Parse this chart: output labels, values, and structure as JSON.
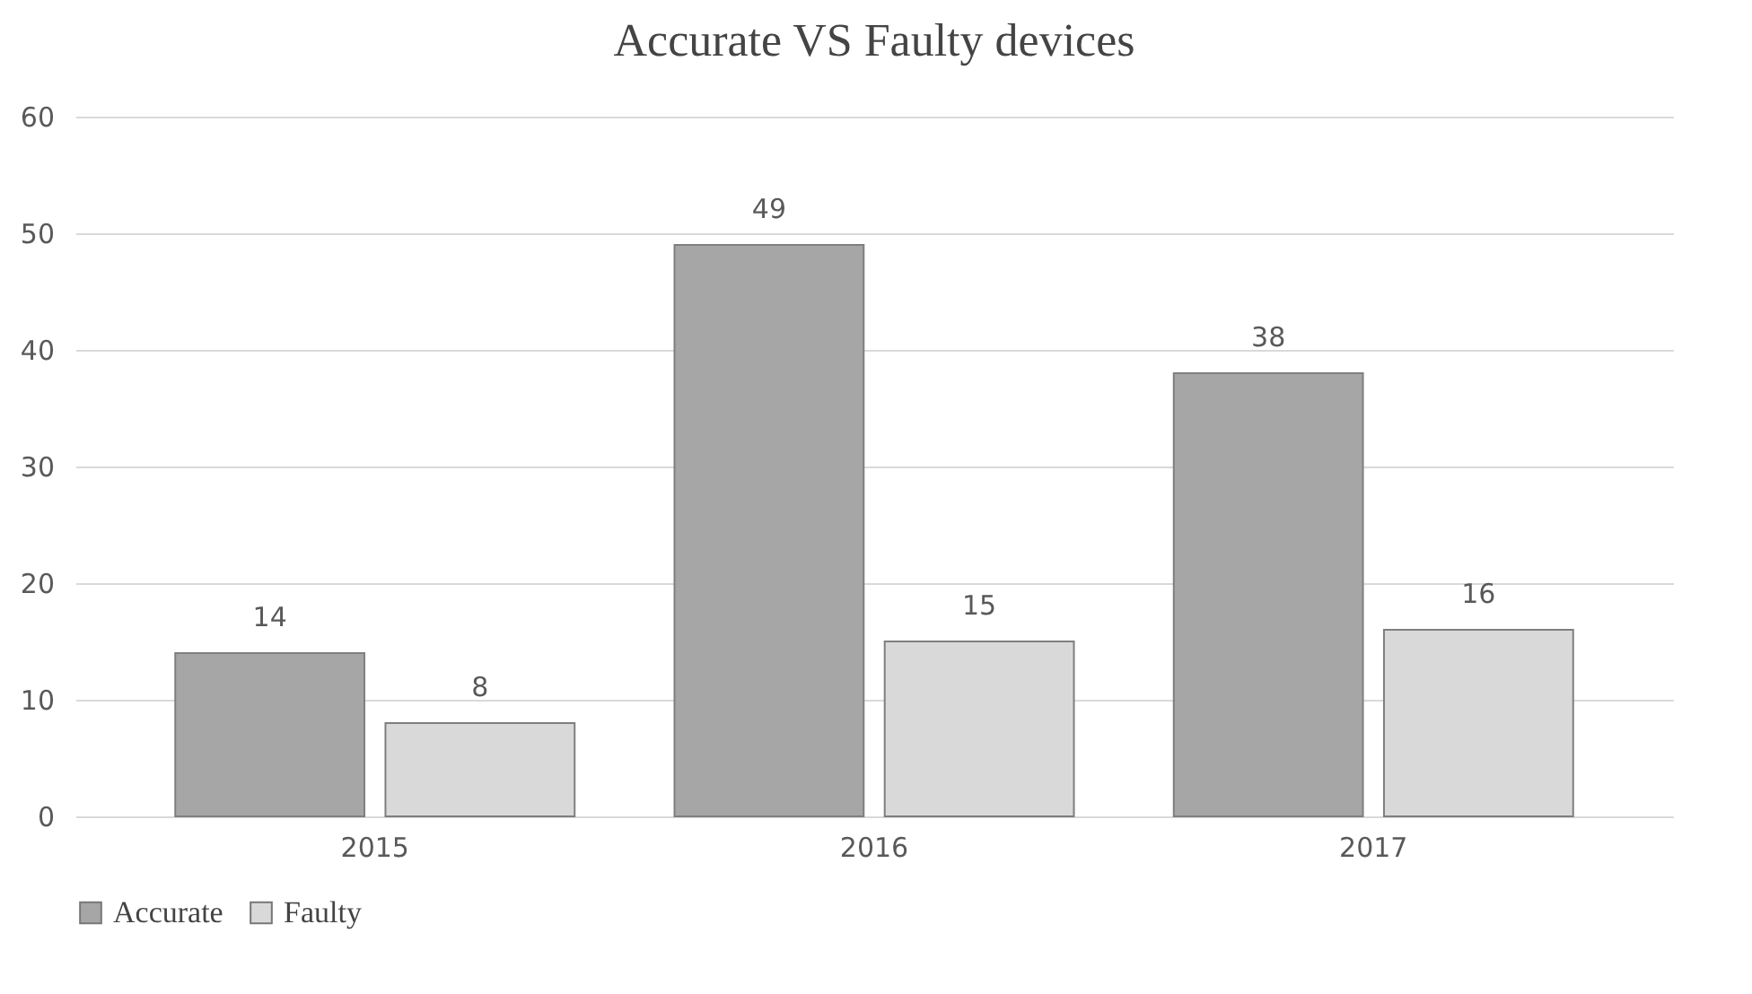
{
  "chart_data": {
    "type": "bar",
    "title": "Accurate VS Faulty devices",
    "categories": [
      "2015",
      "2016",
      "2017"
    ],
    "series": [
      {
        "name": "Accurate",
        "color": "#a6a6a6",
        "values": [
          14,
          49,
          38
        ]
      },
      {
        "name": "Faulty",
        "color": "#d9d9d9",
        "values": [
          8,
          15,
          16
        ]
      }
    ],
    "ylim": [
      0,
      60
    ],
    "yticks": [
      0,
      10,
      20,
      30,
      40,
      50,
      60
    ],
    "grid": "y",
    "legend": "bottom",
    "data_labels": true
  }
}
